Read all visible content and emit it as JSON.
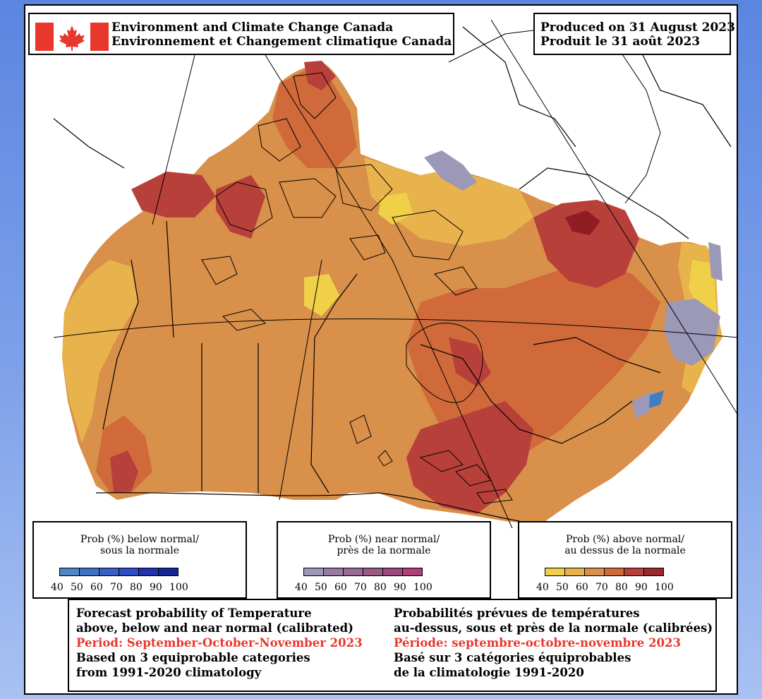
{
  "header": {
    "agency_en": "Environment and Climate Change Canada",
    "agency_fr": "Environnement et Changement climatique Canada",
    "produced_en": "Produced on 31 August 2023",
    "produced_fr": "Produit le 31 août 2023",
    "flag_colors": {
      "red": "#e8372c",
      "white": "#ffffff"
    }
  },
  "map": {
    "region": "Canada",
    "ocean_color": "#ffffff",
    "outline_color": "#000000",
    "category_colors": {
      "above_50": "#e8b24c",
      "above_60": "#d9904a",
      "above_70": "#d06a3a",
      "above_80": "#b8403a",
      "above_90": "#8e1e24",
      "near_40": "#9b98b8",
      "below_40": "#3f7ec1"
    }
  },
  "legends": {
    "below": {
      "title_line1": "Prob (%) below normal/",
      "title_line2": "sous la normale",
      "ticks": [
        "40",
        "50",
        "60",
        "70",
        "80",
        "90",
        "100"
      ],
      "colors": [
        "#4f86c6",
        "#3f73c1",
        "#3a5fc4",
        "#2f4ec6",
        "#2032b0",
        "#172695"
      ]
    },
    "near": {
      "title_line1": "Prob (%) near normal/",
      "title_line2": "près de la normale",
      "ticks": [
        "40",
        "50",
        "60",
        "70",
        "80",
        "90",
        "100"
      ],
      "colors": [
        "#9b98b8",
        "#987aa3",
        "#976b94",
        "#9a5a86",
        "#9c4a7d",
        "#ad3f7a"
      ]
    },
    "above": {
      "title_line1": "Prob (%) above normal/",
      "title_line2": "au dessus de la normale",
      "ticks": [
        "40",
        "50",
        "60",
        "70",
        "80",
        "90",
        "100"
      ],
      "colors": [
        "#f0d048",
        "#e8b24c",
        "#d9904a",
        "#d06a3a",
        "#b8403a",
        "#9a2a2e"
      ]
    }
  },
  "footer": {
    "en_line1": "Forecast probability of Temperature",
    "en_line2": "above, below and near normal (calibrated)",
    "en_period": "Period: September-October-November 2023",
    "en_line4": "Based on 3 equiprobable categories",
    "en_line5": "from 1991-2020 climatology",
    "fr_line1": "Probabilités prévues de températures",
    "fr_line2": "au-dessus, sous et près de la normale (calibrées)",
    "fr_period": "Période: septembre-octobre-novembre 2023",
    "fr_line4": "Basé sur 3 catégories équiprobables",
    "fr_line5": "de la climatologie 1991-2020",
    "period_color": "#e8372c"
  }
}
